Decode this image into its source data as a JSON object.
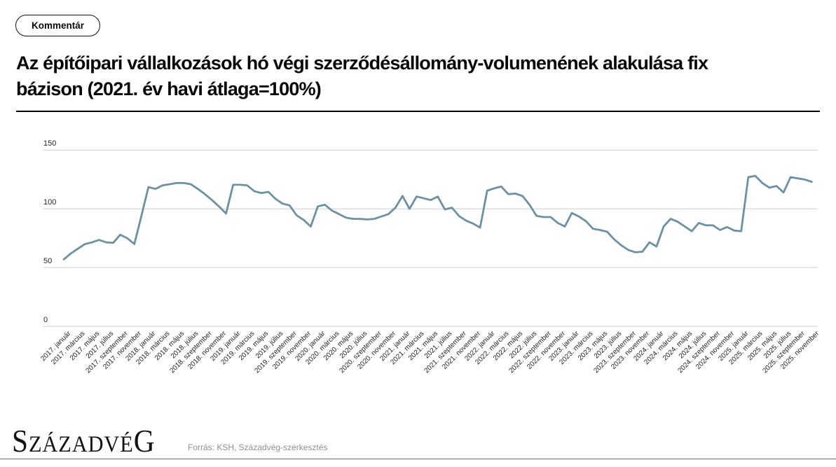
{
  "header": {
    "comment_button_label": "Kommentár",
    "title_lines": [
      "Az építőipari vállalkozások hó végi szerződésállomány-volumenének alakulása fix",
      "bázison (2021. év havi átlaga=100%)"
    ]
  },
  "chart_data": {
    "type": "line",
    "title": "Az építőipari vállalkozások hó végi szerződésállomány-volumenének alakulása fix bázison (2021. év havi átlaga=100%)",
    "ylim": [
      0,
      150
    ],
    "yticks": [
      0,
      50,
      100,
      150
    ],
    "grid": "horizontal-only",
    "legend": "none",
    "line_color": "#6d90a5",
    "tick_labels": [
      "2017. január",
      "2017. március",
      "2017. május",
      "2017. július",
      "2017. szeptember",
      "2017. november",
      "2018. január",
      "2018. március",
      "2018. május",
      "2018. július",
      "2018. szeptember",
      "2018. november",
      "2019. január",
      "2019. március",
      "2019. május",
      "2019. július",
      "2019. szeptember",
      "2019. november",
      "2020. január",
      "2020. március",
      "2020. május",
      "2020. július",
      "2020. szeptember",
      "2020. november",
      "2021. január",
      "2021. március",
      "2021. május",
      "2021. július",
      "2021. szeptember",
      "2021. november",
      "2022. január",
      "2022. március",
      "2022. május",
      "2022. július",
      "2022. szeptember",
      "2022. november",
      "2023. január",
      "2023. március",
      "2023. május",
      "2023. július",
      "2023. szeptember",
      "2023. november",
      "2024. január",
      "2024. március",
      "2024. május",
      "2024. július",
      "2024. szeptember",
      "2024. november",
      "2025. január",
      "2025. március",
      "2025. május",
      "2025. július",
      "2025. szeptember",
      "2025. november"
    ],
    "x_start": "2017-01",
    "x_end": "2025-11",
    "values": [
      57,
      62,
      66,
      70,
      71.5,
      73.5,
      71.5,
      71,
      78,
      75,
      70,
      94,
      118.5,
      117,
      120,
      121,
      122,
      122,
      121,
      117,
      112.5,
      107.5,
      102,
      96,
      120.5,
      120.5,
      120,
      115,
      113.5,
      114.5,
      108.5,
      104.5,
      103,
      94.5,
      90.5,
      85,
      102,
      103.5,
      98.5,
      95.5,
      92.5,
      91.5,
      91.5,
      91,
      91.5,
      93.5,
      95.5,
      101,
      111,
      100,
      110.5,
      109,
      107.5,
      110.5,
      99.5,
      101,
      94,
      90,
      87.5,
      84,
      115.5,
      117.5,
      119,
      112.5,
      113,
      111,
      103.5,
      94,
      93,
      93,
      88,
      85,
      96.5,
      93.5,
      89.5,
      83,
      82,
      80.5,
      74,
      69,
      65,
      63,
      63.5,
      71.5,
      68,
      85,
      91.5,
      89,
      85,
      81,
      88,
      86,
      86,
      82,
      84.5,
      81.5,
      81,
      127,
      128,
      122,
      118,
      119.5,
      114,
      127,
      126,
      125,
      123
    ]
  },
  "footer": {
    "logo_first": "S",
    "logo_mid": "ZÁZADVÉ",
    "logo_last": "G",
    "source": "Forrás: KSH, Századvég-szerkesztés"
  }
}
